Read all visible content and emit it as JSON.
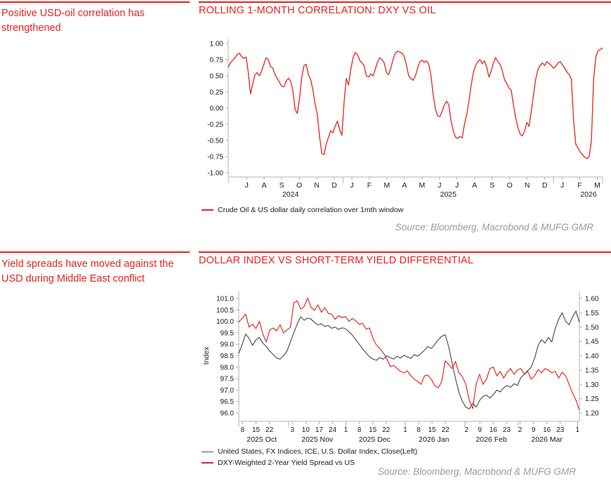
{
  "colors": {
    "accent_red": "#e8231d",
    "line_red": "#e8231d",
    "line_gray": "#4d4d4d",
    "source_gray": "#9b9b9b",
    "axis_gray": "#b3b3b3",
    "tick_text": "#1a1a1a"
  },
  "section1": {
    "note": "Positive USD-oil correlation has strengthened",
    "title": "ROLLING 1-MONTH CORRELATION: DXY VS OIL",
    "legend": [
      {
        "label": "Crude Oil & US dollar daily correlation over 1mth window",
        "color": "#e8231d"
      }
    ],
    "source": "Source: Bloomberg, Macrobond & MUFG GMR"
  },
  "section2": {
    "note": "Yield spreads have moved against the USD during Middle East conflict",
    "title": "DOLLAR INDEX VS SHORT-TERM YIELD DIFFERENTIAL",
    "legend": [
      {
        "label": "United States, FX Indices, ICE, U.S. Dollar Index, Close(Left)",
        "color": "#4d4d4d"
      },
      {
        "label": "DXY-Weighted 2-Year Yield Spread vs US",
        "color": "#e8231d"
      }
    ],
    "source": "Source: Bloomberg, Macrobond & MUFG GMR"
  },
  "chart_data": [
    {
      "type": "line",
      "title": "ROLLING 1-MONTH CORRELATION: DXY VS OIL",
      "ylim": [
        -1.0,
        1.0
      ],
      "ytick_labels": [
        "1.00",
        "0.75",
        "0.50",
        "0.25",
        "0.00",
        "-0.25",
        "-0.50",
        "-0.75",
        "-1.00"
      ],
      "grid": false,
      "legend_position": "bottom-left",
      "x_domain_months": [
        -1.05,
        20.3
      ],
      "x_month_ticks": [
        {
          "label": "J",
          "m": 0
        },
        {
          "label": "A",
          "m": 1
        },
        {
          "label": "S",
          "m": 2
        },
        {
          "label": "O",
          "m": 3
        },
        {
          "label": "N",
          "m": 4
        },
        {
          "label": "D",
          "m": 5
        },
        {
          "label": "J",
          "m": 6
        },
        {
          "label": "F",
          "m": 7
        },
        {
          "label": "M",
          "m": 8
        },
        {
          "label": "A",
          "m": 9
        },
        {
          "label": "M",
          "m": 10
        },
        {
          "label": "J",
          "m": 11
        },
        {
          "label": "J",
          "m": 12
        },
        {
          "label": "A",
          "m": 13
        },
        {
          "label": "S",
          "m": 14
        },
        {
          "label": "O",
          "m": 15
        },
        {
          "label": "N",
          "m": 16
        },
        {
          "label": "D",
          "m": 17
        },
        {
          "label": "J",
          "m": 18
        },
        {
          "label": "F",
          "m": 19
        },
        {
          "label": "M",
          "m": 20
        }
      ],
      "year_separators_m": [
        5.5,
        17.5
      ],
      "year_labels": [
        {
          "label": "2024",
          "m": 2.5
        },
        {
          "label": "2025",
          "m": 11.5
        },
        {
          "label": "2026",
          "m": 19.5
        }
      ],
      "series": [
        {
          "name": "Crude Oil & US dollar daily correlation over 1mth window",
          "color": "#e8231d",
          "axis": "left",
          "values": [
            0.64,
            0.7,
            0.74,
            0.78,
            0.83,
            0.85,
            0.8,
            0.77,
            0.79,
            0.55,
            0.22,
            0.38,
            0.52,
            0.55,
            0.5,
            0.58,
            0.68,
            0.78,
            0.75,
            0.64,
            0.62,
            0.52,
            0.46,
            0.4,
            0.34,
            0.33,
            0.42,
            0.46,
            0.42,
            0.28,
            -0.02,
            -0.08,
            0.15,
            0.48,
            0.66,
            0.68,
            0.52,
            0.44,
            0.28,
            0.06,
            -0.1,
            -0.45,
            -0.7,
            -0.72,
            -0.55,
            -0.45,
            -0.35,
            -0.38,
            -0.28,
            -0.2,
            -0.33,
            -0.42,
            0.1,
            0.46,
            0.36,
            0.6,
            0.78,
            0.86,
            0.83,
            0.74,
            0.7,
            0.66,
            0.5,
            0.48,
            0.53,
            0.5,
            0.6,
            0.72,
            0.78,
            0.75,
            0.7,
            0.55,
            0.52,
            0.62,
            0.76,
            0.85,
            0.88,
            0.87,
            0.85,
            0.8,
            0.66,
            0.5,
            0.46,
            0.43,
            0.5,
            0.62,
            0.72,
            0.74,
            0.71,
            0.73,
            0.68,
            0.5,
            0.2,
            -0.02,
            -0.12,
            -0.13,
            -0.05,
            0.05,
            0.11,
            0.05,
            -0.2,
            -0.35,
            -0.45,
            -0.47,
            -0.44,
            -0.46,
            -0.25,
            -0.1,
            0.1,
            0.35,
            0.55,
            0.66,
            0.72,
            0.75,
            0.69,
            0.73,
            0.64,
            0.48,
            0.57,
            0.7,
            0.78,
            0.72,
            0.68,
            0.58,
            0.44,
            0.38,
            0.31,
            0.28,
            0.05,
            -0.15,
            -0.3,
            -0.4,
            -0.43,
            -0.35,
            -0.22,
            -0.28,
            -0.05,
            0.2,
            0.45,
            0.6,
            0.66,
            0.7,
            0.66,
            0.72,
            0.69,
            0.66,
            0.62,
            0.65,
            0.7,
            0.72,
            0.67,
            0.62,
            0.56,
            0.52,
            0.45,
            -0.2,
            -0.56,
            -0.62,
            -0.68,
            -0.72,
            -0.76,
            -0.78,
            -0.75,
            -0.5,
            0.45,
            0.8,
            0.89,
            0.91,
            0.93
          ]
        }
      ]
    },
    {
      "type": "line",
      "title": "DOLLAR INDEX VS SHORT-TERM YIELD DIFFERENTIAL",
      "ylabel_left": "Index",
      "ylim_left": [
        96.0,
        101.0
      ],
      "ytick_labels_left": [
        "101.0",
        "100.5",
        "100.0",
        "99.5",
        "99.0",
        "98.5",
        "98.0",
        "97.5",
        "97.0",
        "96.5",
        "96.0"
      ],
      "ylim_right": [
        1.2,
        1.6
      ],
      "ytick_labels_right": [
        "1.60",
        "1.55",
        "1.50",
        "1.45",
        "1.40",
        "1.35",
        "1.30",
        "1.25",
        "1.20"
      ],
      "grid": false,
      "legend_position": "bottom-left",
      "x_domain_days": [
        0,
        178
      ],
      "day_ticks": [
        {
          "label": "8",
          "d": 2
        },
        {
          "label": "15",
          "d": 9
        },
        {
          "label": "22",
          "d": 16
        },
        {
          "label": "3",
          "d": 28
        },
        {
          "label": "10",
          "d": 35
        },
        {
          "label": "17",
          "d": 42
        },
        {
          "label": "24",
          "d": 49
        },
        {
          "label": "1",
          "d": 56
        },
        {
          "label": "8",
          "d": 63
        },
        {
          "label": "15",
          "d": 70
        },
        {
          "label": "22",
          "d": 77
        },
        {
          "label": "1",
          "d": 87
        },
        {
          "label": "8",
          "d": 94
        },
        {
          "label": "15",
          "d": 101
        },
        {
          "label": "22",
          "d": 108
        },
        {
          "label": "2",
          "d": 119
        },
        {
          "label": "9",
          "d": 126
        },
        {
          "label": "16",
          "d": 133
        },
        {
          "label": "23",
          "d": 140
        },
        {
          "label": "2",
          "d": 147
        },
        {
          "label": "9",
          "d": 154
        },
        {
          "label": "16",
          "d": 161
        },
        {
          "label": "23",
          "d": 168
        },
        {
          "label": "1",
          "d": 177
        }
      ],
      "month_separators_d": [
        26,
        56,
        87,
        118,
        146,
        177
      ],
      "month_labels": [
        {
          "label": "2025 Oct",
          "d": 12
        },
        {
          "label": "2025 Nov",
          "d": 41
        },
        {
          "label": "2025 Dec",
          "d": 71
        },
        {
          "label": "2026 Jan",
          "d": 102
        },
        {
          "label": "2026 Feb",
          "d": 132
        },
        {
          "label": "2026 Mar",
          "d": 161
        }
      ],
      "series": [
        {
          "name": "United States, FX Indices, ICE, U.S. Dollar Index, Close(Left)",
          "color": "#4d4d4d",
          "axis": "left",
          "values": [
            98.6,
            99.0,
            99.45,
            99.25,
            98.95,
            99.2,
            99.3,
            99.05,
            98.9,
            98.7,
            98.55,
            98.4,
            98.35,
            98.5,
            98.7,
            99.1,
            99.5,
            99.9,
            100.2,
            100.05,
            100.15,
            100.1,
            99.95,
            99.85,
            99.9,
            99.78,
            99.82,
            99.7,
            99.75,
            99.65,
            99.72,
            99.68,
            99.55,
            99.4,
            99.2,
            99.0,
            98.8,
            98.62,
            98.45,
            98.35,
            98.3,
            98.42,
            98.35,
            98.5,
            98.42,
            98.35,
            98.48,
            98.4,
            98.52,
            98.45,
            98.38,
            98.55,
            98.48,
            98.6,
            98.75,
            98.9,
            98.82,
            99.0,
            99.2,
            99.35,
            99.42,
            98.9,
            98.2,
            97.5,
            96.9,
            96.5,
            96.25,
            96.18,
            96.42,
            96.25,
            96.55,
            96.72,
            96.78,
            96.65,
            96.8,
            97.0,
            96.92,
            97.1,
            97.2,
            97.12,
            97.28,
            97.2,
            97.55,
            97.7,
            97.85,
            98.0,
            98.4,
            98.95,
            99.2,
            99.05,
            99.3,
            99.1,
            99.7,
            100.1,
            100.38,
            100.0,
            99.85,
            100.2,
            100.45,
            99.95
          ]
        },
        {
          "name": "DXY-Weighted 2-Year Yield Spread vs US",
          "color": "#e8231d",
          "axis": "right",
          "values": [
            1.518,
            1.53,
            1.545,
            1.5,
            1.51,
            1.495,
            1.52,
            1.475,
            1.448,
            1.49,
            1.497,
            1.487,
            1.508,
            1.48,
            1.49,
            1.5,
            1.585,
            1.592,
            1.563,
            1.572,
            1.602,
            1.57,
            1.558,
            1.578,
            1.552,
            1.568,
            1.548,
            1.545,
            1.527,
            1.54,
            1.533,
            1.537,
            1.52,
            1.53,
            1.522,
            1.51,
            1.513,
            1.493,
            1.497,
            1.46,
            1.437,
            1.425,
            1.41,
            1.39,
            1.363,
            1.366,
            1.356,
            1.345,
            1.34,
            1.347,
            1.33,
            1.318,
            1.31,
            1.3,
            1.33,
            1.332,
            1.317,
            1.295,
            1.288,
            1.31,
            1.382,
            1.37,
            1.355,
            1.38,
            1.34,
            1.327,
            1.3,
            1.245,
            1.215,
            1.3,
            1.335,
            1.3,
            1.318,
            1.355,
            1.36,
            1.33,
            1.345,
            1.322,
            1.342,
            1.355,
            1.335,
            1.35,
            1.355,
            1.335,
            1.345,
            1.318,
            1.33,
            1.352,
            1.34,
            1.355,
            1.35,
            1.34,
            1.345,
            1.322,
            1.342,
            1.33,
            1.3,
            1.27,
            1.245,
            1.21
          ]
        }
      ]
    }
  ]
}
